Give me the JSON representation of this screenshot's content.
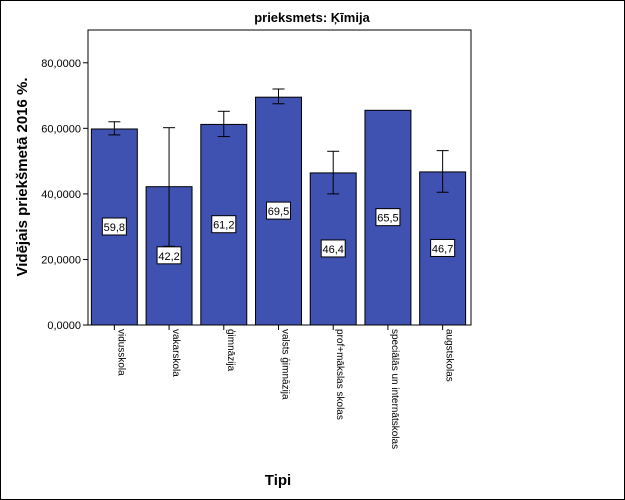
{
  "chart_data": {
    "type": "bar",
    "title": "prieksmets: Ķīmija",
    "xlabel": "Tipi",
    "ylabel": "Vidējais priekšmetā 2016 %.",
    "ylim": [
      0,
      90
    ],
    "yticks": [
      0,
      20,
      40,
      60,
      80
    ],
    "ytick_labels": [
      "0,0000",
      "20,0000",
      "40,0000",
      "60,0000",
      "80,0000"
    ],
    "categories": [
      "vidusskola",
      "vakarskola",
      "ģimnāzija",
      "valsts ģimnāzija",
      "prof+mākslas skolas",
      "speciālās un internātskolas",
      "augstskolas"
    ],
    "values": [
      59.8,
      42.2,
      61.2,
      69.5,
      46.4,
      65.5,
      46.7
    ],
    "data_labels": [
      "59,8",
      "42,2",
      "61,2",
      "69,5",
      "46,4",
      "65,5",
      "46,7"
    ],
    "error_low": [
      58.0,
      24.0,
      57.5,
      67.5,
      40.0,
      null,
      40.5
    ],
    "error_high": [
      62.0,
      60.2,
      65.2,
      72.0,
      53.0,
      null,
      53.2
    ],
    "colors": {
      "bar": "#3F51B1",
      "background": "#ffffff",
      "border": "#000000"
    },
    "grid": false,
    "legend": "none"
  }
}
